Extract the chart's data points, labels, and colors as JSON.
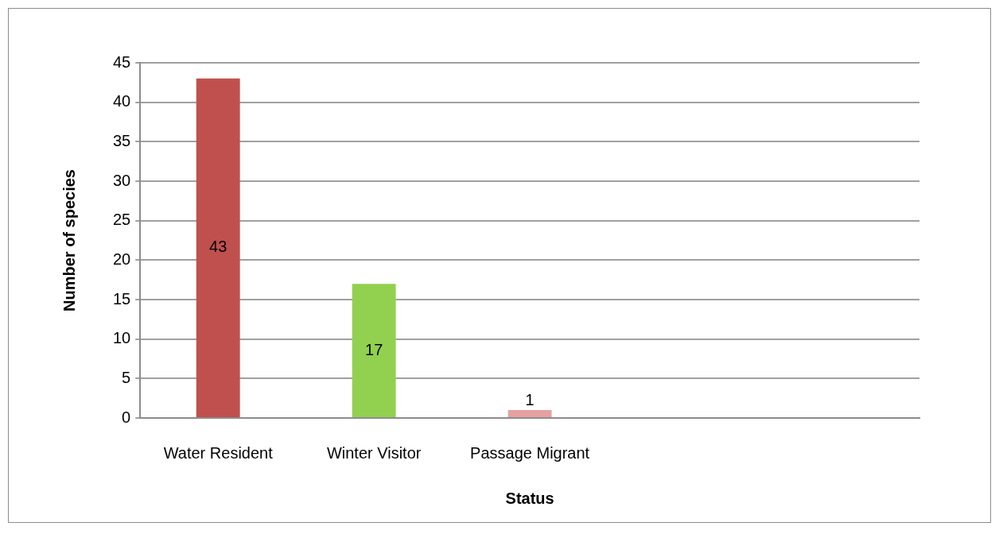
{
  "chart_data": {
    "type": "bar",
    "xlabel": "Status",
    "ylabel": "Number of species",
    "categories": [
      "Water Resident",
      "Winter Visitor",
      "Passage Migrant",
      null,
      null
    ],
    "values": [
      43,
      17,
      1,
      null,
      null
    ],
    "colors": [
      "#c0504d",
      "#92d050",
      "#e6a1a1",
      null,
      null
    ],
    "ylim": [
      0,
      45
    ],
    "yticks": [
      0,
      5,
      10,
      15,
      20,
      25,
      30,
      35,
      40,
      45
    ],
    "grid": "y",
    "data_labels": true
  }
}
